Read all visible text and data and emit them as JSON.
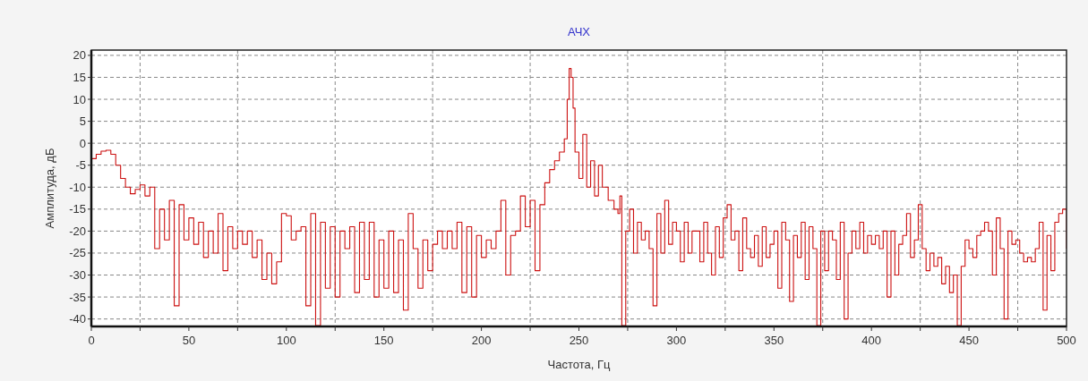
{
  "chart_data": {
    "type": "step",
    "title": "АЧХ",
    "xlabel": "Частота, Гц",
    "ylabel": "Амплитуда, дБ",
    "xlim": [
      0,
      500
    ],
    "ylim": [
      -41.7,
      21.2
    ],
    "xticks": [
      0,
      {
        "value": 25,
        "label": null
      },
      50,
      {
        "value": 75,
        "label": null
      },
      100,
      {
        "value": 125,
        "label": null
      },
      150,
      {
        "value": 175,
        "label": null
      },
      200,
      {
        "value": 225,
        "label": null
      },
      250,
      {
        "value": 275,
        "label": null
      },
      300,
      {
        "value": 325,
        "label": null
      },
      350,
      {
        "value": 375,
        "label": null
      },
      400,
      {
        "value": 425,
        "label": null
      },
      450,
      {
        "value": 475,
        "label": null
      },
      500
    ],
    "yticks": [
      -40,
      -35,
      -30,
      -25,
      -20,
      -15,
      -10,
      -5,
      0,
      5,
      10,
      15,
      20
    ],
    "grid": true,
    "line_style": "solid",
    "series": [
      {
        "color": "#cc1111",
        "x": [
          0,
          2.5,
          5,
          7.5,
          10,
          12.5,
          15,
          17.5,
          20,
          22.5,
          25,
          27.5,
          30,
          32.5,
          35,
          37.5,
          40,
          42.5,
          45,
          47.5,
          50,
          52.5,
          55,
          57.5,
          60,
          62.5,
          65,
          67.5,
          70,
          72.5,
          75,
          77.5,
          80,
          82.5,
          85,
          87.5,
          90,
          92.5,
          95,
          97.5,
          100,
          102.5,
          105,
          107.5,
          110,
          112.5,
          115,
          117.5,
          120,
          122.5,
          125,
          127.5,
          130,
          132.5,
          135,
          137.5,
          140,
          142.5,
          145,
          147.5,
          150,
          152.5,
          155,
          157.5,
          160,
          162.5,
          165,
          167.5,
          170,
          172.5,
          175,
          177.5,
          180,
          182.5,
          185,
          187.5,
          190,
          192.5,
          195,
          197.5,
          200,
          202.5,
          205,
          207.5,
          210,
          212.5,
          215,
          217.5,
          220,
          222.5,
          225,
          227.5,
          230,
          232.5,
          235,
          237.5,
          240,
          242.5,
          244,
          245,
          246,
          247,
          248,
          250,
          252,
          254,
          256,
          258,
          260,
          262,
          265,
          268,
          270,
          271,
          272,
          274,
          276,
          278,
          280,
          282,
          284,
          286,
          288,
          290,
          292,
          294,
          296,
          298,
          300,
          302,
          304,
          306,
          308,
          310,
          312,
          314,
          316,
          318,
          320,
          322,
          324,
          326,
          328,
          330,
          332,
          334,
          336,
          338,
          340,
          342,
          344,
          346,
          348,
          350,
          352,
          354,
          356,
          358,
          360,
          362,
          364,
          366,
          368,
          370,
          372,
          374,
          376,
          378,
          380,
          382,
          384,
          386,
          388,
          390,
          392,
          394,
          396,
          398,
          400,
          402,
          404,
          406,
          408,
          410,
          412,
          414,
          416,
          418,
          420,
          422,
          424,
          426,
          428,
          430,
          432,
          434,
          436,
          438,
          440,
          442,
          444,
          446,
          448,
          450,
          452,
          454,
          456,
          458,
          460,
          462,
          464,
          466,
          468,
          470,
          472,
          474,
          476,
          478,
          480,
          482,
          484,
          486,
          488,
          490,
          492,
          494,
          496,
          498,
          500
        ],
        "values": [
          -3.5,
          -2.5,
          -1.8,
          -1.6,
          -2.5,
          -5,
          -8,
          -10,
          -11.5,
          -10.5,
          -9.5,
          -12,
          -10,
          -24,
          -15,
          -22,
          -13,
          -37,
          -14,
          -22,
          -17,
          -23,
          -18,
          -26,
          -20,
          -25,
          -16,
          -29,
          -19,
          -24,
          -20,
          -23,
          -20,
          -26,
          -22,
          -31,
          -25,
          -32,
          -27,
          -16,
          -16.5,
          -22,
          -20,
          -19,
          -37,
          -16,
          -41.5,
          -18,
          -33,
          -19,
          -35,
          -20,
          -24,
          -19,
          -34,
          -18,
          -31,
          -18,
          -35,
          -22,
          -33,
          -20,
          -34,
          -22,
          -38,
          -16,
          -24,
          -33,
          -22,
          -29,
          -23,
          -20,
          -24,
          -20,
          -24,
          -18,
          -34,
          -19,
          -35,
          -21,
          -26,
          -22,
          -24,
          -20,
          -13,
          -30,
          -21,
          -20,
          -12,
          -19,
          -13,
          -29,
          -14,
          -9,
          -6,
          -4,
          -2,
          1,
          10,
          17,
          15,
          8,
          -2,
          -8,
          2,
          -10,
          -4,
          -12,
          -5,
          -10,
          -13,
          -15,
          -16,
          -12,
          -41.5,
          -20,
          -15,
          -25,
          -18,
          -22,
          -20,
          -24,
          -37,
          -16,
          -25,
          -13,
          -23,
          -18,
          -20,
          -27,
          -18,
          -25,
          -20,
          -20,
          -27,
          -18,
          -25,
          -30,
          -19,
          -26,
          -17,
          -14,
          -22,
          -20,
          -29,
          -17,
          -24,
          -26,
          -21,
          -28,
          -19,
          -26,
          -23,
          -20,
          -33,
          -18,
          -22,
          -36,
          -21,
          -26,
          -18,
          -31,
          -19,
          -24,
          -41.5,
          -20,
          -29,
          -20,
          -22,
          -31,
          -18,
          -40,
          -25,
          -20,
          -24,
          -18,
          -25,
          -21,
          -23,
          -21,
          -24,
          -20,
          -35,
          -20,
          -30,
          -23,
          -21,
          -16,
          -26,
          -22,
          -14,
          -24,
          -29,
          -25,
          -28,
          -26,
          -32,
          -28,
          -34,
          -30,
          -41.5,
          -28,
          -22,
          -24,
          -26,
          -21,
          -20,
          -18,
          -20,
          -30,
          -17,
          -24,
          -40,
          -20,
          -23,
          -22,
          -25,
          -27,
          -26,
          -27,
          -24,
          -18,
          -38,
          -21,
          -29,
          -18,
          -16,
          -15,
          -24
        ]
      }
    ]
  }
}
